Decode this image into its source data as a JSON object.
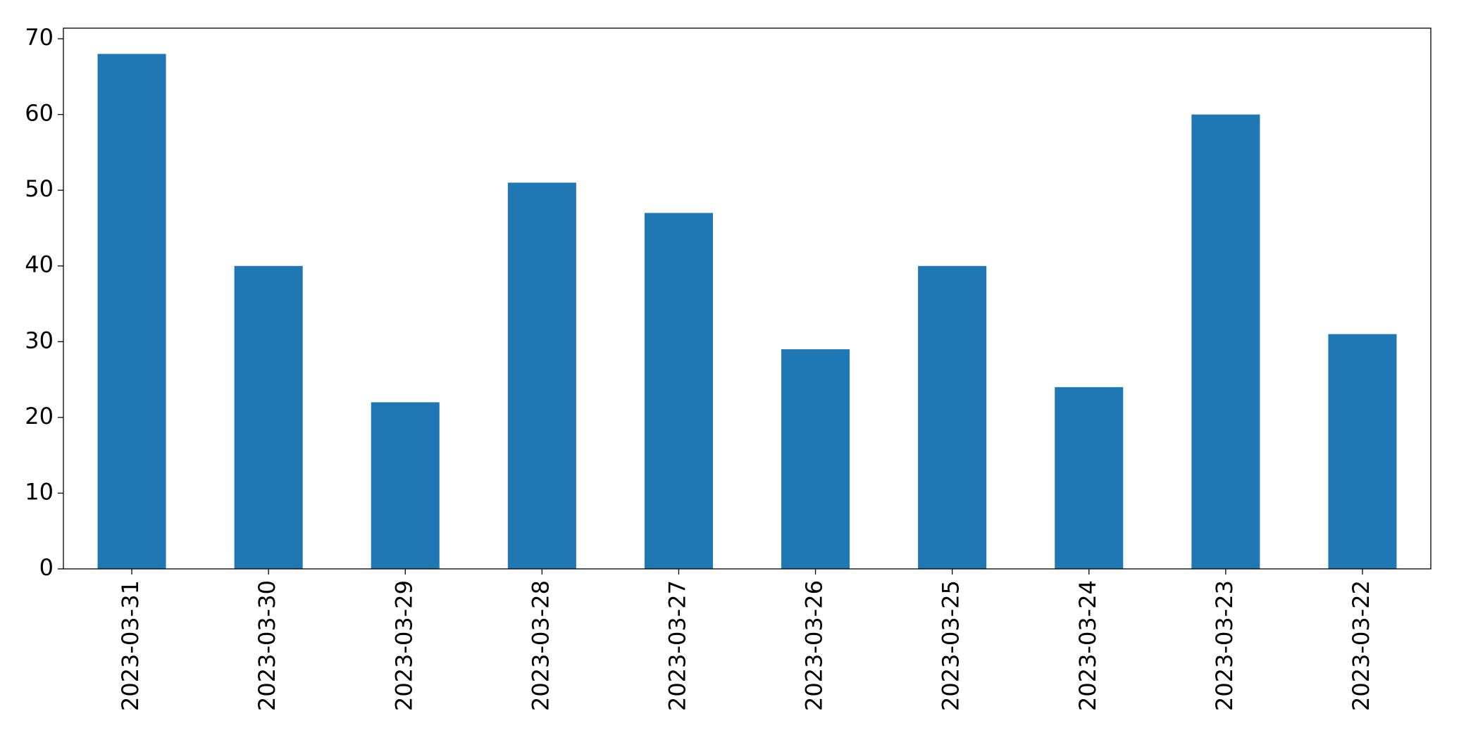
{
  "chart_data": {
    "type": "bar",
    "categories": [
      "2023-03-31",
      "2023-03-30",
      "2023-03-29",
      "2023-03-28",
      "2023-03-27",
      "2023-03-26",
      "2023-03-25",
      "2023-03-24",
      "2023-03-23",
      "2023-03-22"
    ],
    "values": [
      68,
      40,
      22,
      51,
      47,
      29,
      40,
      24,
      60,
      31
    ],
    "color": "#1f77b4",
    "ylim": [
      0,
      71.4
    ],
    "yticks": [
      0,
      10,
      20,
      30,
      40,
      50,
      60,
      70
    ],
    "grid": false
  }
}
